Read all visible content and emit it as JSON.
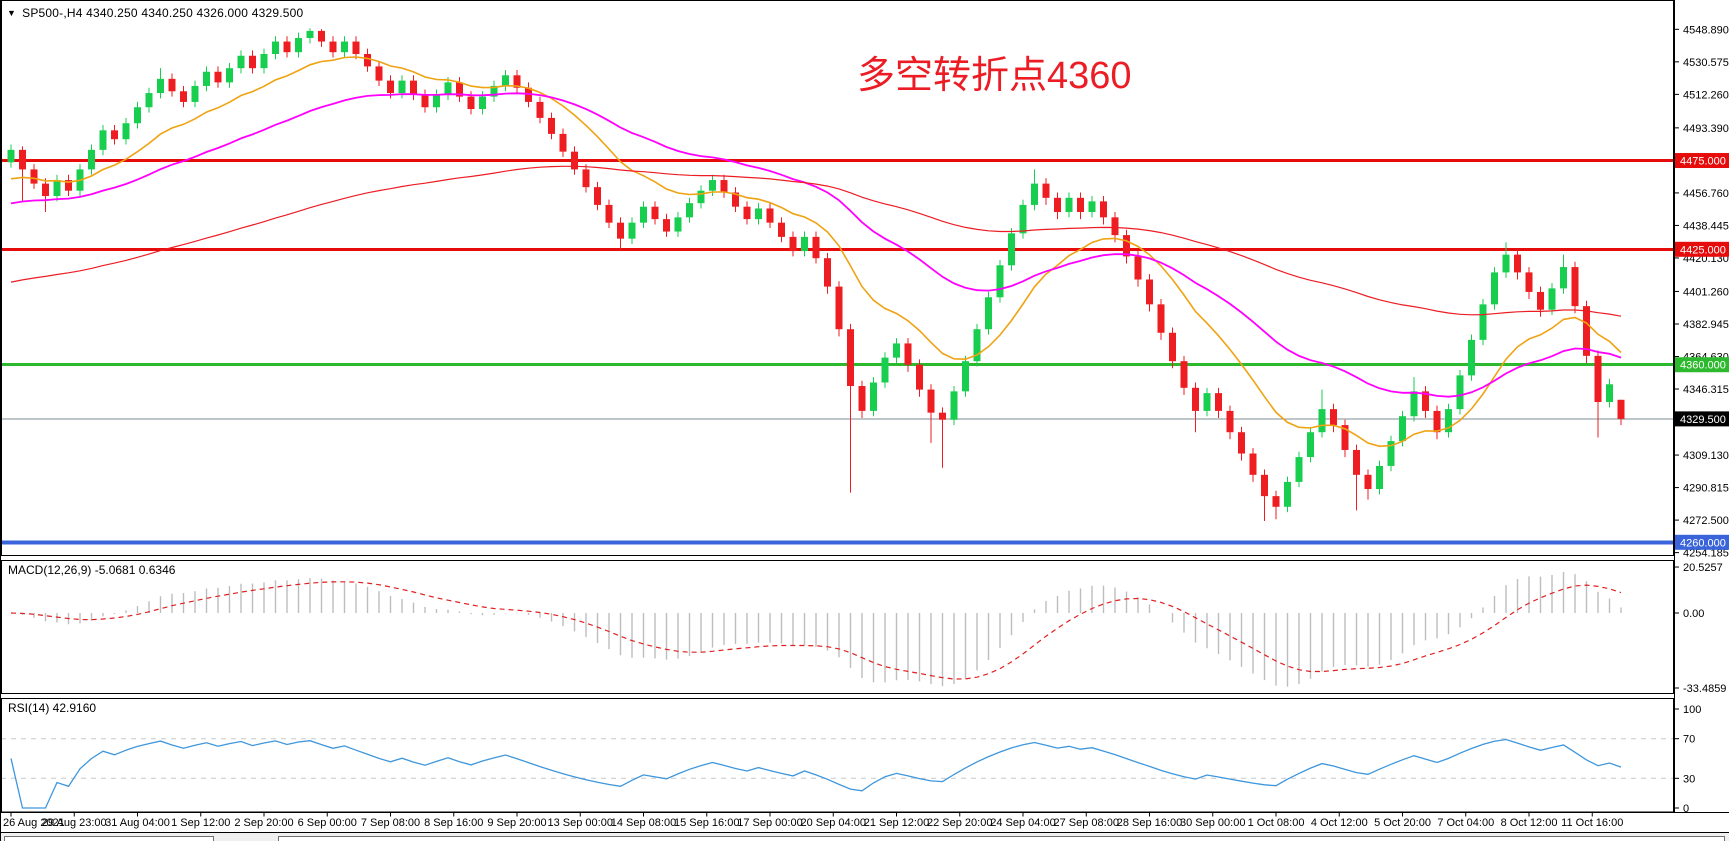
{
  "symbol_bar": {
    "collapse_icon": "▼",
    "text": "SP500-,H4  4340.250 4340.250 4326.000 4329.500"
  },
  "annotation": {
    "text": "多空转折点4360",
    "color": "#ec1c24"
  },
  "colors": {
    "bull": "#17CE4F",
    "bear": "#EE1D22",
    "ma_fast": "#EFA312",
    "ma_mid": "#FF00FF",
    "ma_slow": "#ED1C24",
    "hline_red": "#E60C0C",
    "hline_green": "#2DB92D",
    "hline_blue": "#3A64D9",
    "hline_gray": "#7C8C94",
    "macd_hist": "#BDBDBD",
    "macd_signal": "#E02020",
    "rsi_line": "#3E96DC",
    "rsi_level": "#C8C8C8",
    "scale_text": "#000000",
    "badge_text": "#FFFFFF"
  },
  "chart_data": [
    {
      "type": "candlestick",
      "symbol": "SP500-",
      "timeframe": "H4",
      "last_ohlc": {
        "open": "4340.250",
        "high": "4340.250",
        "low": "4326.000",
        "close": "4329.500"
      },
      "y_ticks": [
        "4548.890",
        "4530.575",
        "4512.260",
        "4493.390",
        "4456.760",
        "4438.445",
        "4420.130",
        "4401.260",
        "4382.945",
        "4364.630",
        "4346.315",
        "4309.130",
        "4290.815",
        "4272.500",
        "4254.185"
      ],
      "badges": [
        {
          "text": "4475.000",
          "price": 4475.0,
          "bg": "#E60C0C"
        },
        {
          "text": "4425.000",
          "price": 4425.0,
          "bg": "#E60C0C"
        },
        {
          "text": "4360.000",
          "price": 4360.0,
          "bg": "#2DB92D"
        },
        {
          "text": "4329.500",
          "price": 4329.5,
          "bg": "#000000"
        },
        {
          "text": "4260.000",
          "price": 4260.0,
          "bg": "#3A64D9"
        }
      ],
      "hlines": [
        {
          "price": 4475.0,
          "color_key": "hline_red",
          "width": 3
        },
        {
          "price": 4425.0,
          "color_key": "hline_red",
          "width": 3
        },
        {
          "price": 4360.0,
          "color_key": "hline_green",
          "width": 3
        },
        {
          "price": 4329.5,
          "color_key": "hline_gray",
          "width": 1
        },
        {
          "price": 4260.0,
          "color_key": "hline_blue",
          "width": 4
        }
      ],
      "overlays": [
        {
          "name": "ema-fast-orange",
          "period": 13,
          "seed": 4462,
          "color_key": "ma_fast",
          "stroke": 1.6
        },
        {
          "name": "ema-mid-magenta",
          "period": 34,
          "seed": 4449,
          "color_key": "ma_mid",
          "stroke": 1.8
        },
        {
          "name": "ema-slow-red",
          "period": 100,
          "seed": 4405,
          "color_key": "ma_slow",
          "stroke": 1.2
        }
      ],
      "x_labels": [
        "26 Aug 2021",
        "29 Aug 23:00",
        "31 Aug 04:00",
        "1 Sep 12:00",
        "2 Sep 20:00",
        "6 Sep 00:00",
        "7 Sep 08:00",
        "8 Sep 16:00",
        "9 Sep 20:00",
        "13 Sep 00:00",
        "14 Sep 08:00",
        "15 Sep 16:00",
        "17 Sep 00:00",
        "20 Sep 04:00",
        "21 Sep 12:00",
        "22 Sep 20:00",
        "24 Sep 04:00",
        "27 Sep 08:00",
        "28 Sep 16:00",
        "30 Sep 00:00",
        "1 Oct 08:00",
        "4 Oct 12:00",
        "5 Oct 20:00",
        "7 Oct 04:00",
        "8 Oct 12:00",
        "11 Oct 16:00"
      ],
      "ohlc": [
        [
          4474,
          4484,
          4471,
          4481
        ],
        [
          4481,
          4483,
          4452,
          4470
        ],
        [
          4470,
          4473,
          4459,
          4462
        ],
        [
          4462,
          4465,
          4446,
          4455
        ],
        [
          4455,
          4467,
          4452,
          4464
        ],
        [
          4464,
          4467,
          4455,
          4458
        ],
        [
          4458,
          4473,
          4455,
          4470
        ],
        [
          4470,
          4484,
          4467,
          4481
        ],
        [
          4481,
          4495,
          4478,
          4492
        ],
        [
          4492,
          4495,
          4484,
          4487
        ],
        [
          4487,
          4499,
          4484,
          4496
        ],
        [
          4496,
          4508,
          4493,
          4505
        ],
        [
          4505,
          4516,
          4502,
          4513
        ],
        [
          4513,
          4527,
          4510,
          4521
        ],
        [
          4521,
          4524,
          4511,
          4514
        ],
        [
          4514,
          4517,
          4505,
          4508
        ],
        [
          4508,
          4520,
          4505,
          4517
        ],
        [
          4517,
          4528,
          4514,
          4525
        ],
        [
          4525,
          4528,
          4516,
          4519
        ],
        [
          4519,
          4530,
          4516,
          4527
        ],
        [
          4527,
          4537,
          4524,
          4534
        ],
        [
          4534,
          4537,
          4524,
          4527
        ],
        [
          4527,
          4538,
          4524,
          4535
        ],
        [
          4535,
          4545,
          4532,
          4542
        ],
        [
          4542,
          4545,
          4533,
          4536
        ],
        [
          4536,
          4547,
          4533,
          4544
        ],
        [
          4544,
          4549.5,
          4541,
          4548
        ],
        [
          4548,
          4549,
          4539,
          4542
        ],
        [
          4542,
          4545,
          4533,
          4536
        ],
        [
          4536,
          4545,
          4533,
          4542
        ],
        [
          4542,
          4545,
          4532,
          4535
        ],
        [
          4535,
          4538,
          4525,
          4528
        ],
        [
          4528,
          4531,
          4517,
          4520
        ],
        [
          4520,
          4523,
          4510,
          4513
        ],
        [
          4513,
          4523,
          4510,
          4520
        ],
        [
          4520,
          4523,
          4509,
          4512
        ],
        [
          4512,
          4515,
          4502,
          4505
        ],
        [
          4505,
          4515,
          4502,
          4512
        ],
        [
          4512,
          4522,
          4509,
          4519
        ],
        [
          4519,
          4522,
          4508,
          4511
        ],
        [
          4511,
          4514,
          4501,
          4504
        ],
        [
          4504,
          4514,
          4501,
          4511
        ],
        [
          4511,
          4520,
          4508,
          4517
        ],
        [
          4517,
          4526,
          4514,
          4523
        ],
        [
          4523,
          4526,
          4513,
          4516
        ],
        [
          4516,
          4519,
          4505,
          4508
        ],
        [
          4508,
          4511,
          4496,
          4499
        ],
        [
          4499,
          4502,
          4487,
          4490
        ],
        [
          4490,
          4493,
          4477,
          4480
        ],
        [
          4480,
          4483,
          4467,
          4470
        ],
        [
          4470,
          4473,
          4457,
          4460
        ],
        [
          4460,
          4463,
          4447,
          4450
        ],
        [
          4450,
          4453,
          4437,
          4440
        ],
        [
          4440,
          4443,
          4424,
          4431
        ],
        [
          4431,
          4443,
          4428,
          4440
        ],
        [
          4440,
          4452,
          4437,
          4449
        ],
        [
          4449,
          4452,
          4439,
          4442
        ],
        [
          4442,
          4445,
          4432,
          4435
        ],
        [
          4435,
          4446,
          4432,
          4443
        ],
        [
          4443,
          4454,
          4440,
          4451
        ],
        [
          4451,
          4461,
          4448,
          4458
        ],
        [
          4458,
          4467,
          4455,
          4464
        ],
        [
          4464,
          4467,
          4454,
          4457
        ],
        [
          4457,
          4460,
          4446,
          4449
        ],
        [
          4449,
          4452,
          4439,
          4442
        ],
        [
          4442,
          4451,
          4439,
          4448
        ],
        [
          4448,
          4451,
          4437,
          4440
        ],
        [
          4440,
          4443,
          4429,
          4432
        ],
        [
          4432,
          4435,
          4421,
          4424
        ],
        [
          4424,
          4435,
          4421,
          4432
        ],
        [
          4432,
          4435,
          4417,
          4420
        ],
        [
          4420,
          4423,
          4400,
          4404
        ],
        [
          4404,
          4407,
          4376,
          4380
        ],
        [
          4380,
          4383,
          4288,
          4348
        ],
        [
          4348,
          4351,
          4330,
          4334
        ],
        [
          4334,
          4353,
          4331,
          4350
        ],
        [
          4350,
          4367,
          4347,
          4364
        ],
        [
          4364,
          4375,
          4361,
          4372
        ],
        [
          4372,
          4375,
          4356,
          4360
        ],
        [
          4360,
          4363,
          4342,
          4346
        ],
        [
          4346,
          4349,
          4316,
          4333
        ],
        [
          4333,
          4336,
          4302,
          4329
        ],
        [
          4329,
          4348,
          4326,
          4345
        ],
        [
          4345,
          4365,
          4342,
          4362
        ],
        [
          4362,
          4383,
          4359,
          4380
        ],
        [
          4380,
          4401,
          4377,
          4398
        ],
        [
          4398,
          4419,
          4395,
          4416
        ],
        [
          4416,
          4437,
          4413,
          4434
        ],
        [
          4434,
          4453,
          4431,
          4450
        ],
        [
          4450,
          4470,
          4447,
          4462
        ],
        [
          4462,
          4465,
          4450,
          4454
        ],
        [
          4454,
          4457,
          4442,
          4446
        ],
        [
          4446,
          4457,
          4443,
          4454
        ],
        [
          4454,
          4457,
          4442,
          4446
        ],
        [
          4446,
          4455,
          4443,
          4452
        ],
        [
          4452,
          4455,
          4439,
          4443
        ],
        [
          4443,
          4446,
          4429,
          4433
        ],
        [
          4433,
          4436,
          4417,
          4421
        ],
        [
          4421,
          4424,
          4404,
          4408
        ],
        [
          4408,
          4411,
          4390,
          4394
        ],
        [
          4394,
          4397,
          4374,
          4378
        ],
        [
          4378,
          4381,
          4358,
          4362
        ],
        [
          4362,
          4365,
          4343,
          4347
        ],
        [
          4347,
          4350,
          4322,
          4334
        ],
        [
          4334,
          4347,
          4331,
          4344
        ],
        [
          4344,
          4347,
          4330,
          4334
        ],
        [
          4334,
          4337,
          4318,
          4322
        ],
        [
          4322,
          4325,
          4306,
          4310
        ],
        [
          4310,
          4313,
          4294,
          4298
        ],
        [
          4298,
          4301,
          4272,
          4286
        ],
        [
          4286,
          4289,
          4273,
          4280
        ],
        [
          4280,
          4297,
          4277,
          4294
        ],
        [
          4294,
          4311,
          4291,
          4308
        ],
        [
          4308,
          4325,
          4305,
          4322
        ],
        [
          4322,
          4346,
          4319,
          4335
        ],
        [
          4335,
          4338,
          4322,
          4326
        ],
        [
          4326,
          4329,
          4308,
          4312
        ],
        [
          4312,
          4315,
          4278,
          4298
        ],
        [
          4298,
          4301,
          4284,
          4290
        ],
        [
          4290,
          4306,
          4287,
          4303
        ],
        [
          4303,
          4320,
          4300,
          4317
        ],
        [
          4317,
          4334,
          4314,
          4331
        ],
        [
          4331,
          4353,
          4328,
          4345
        ],
        [
          4345,
          4348,
          4330,
          4334
        ],
        [
          4334,
          4337,
          4318,
          4322
        ],
        [
          4322,
          4338,
          4319,
          4335
        ],
        [
          4335,
          4357,
          4332,
          4354
        ],
        [
          4354,
          4377,
          4351,
          4374
        ],
        [
          4374,
          4397,
          4371,
          4394
        ],
        [
          4394,
          4415,
          4391,
          4412
        ],
        [
          4412,
          4429,
          4409,
          4422
        ],
        [
          4422,
          4425,
          4408,
          4412
        ],
        [
          4412,
          4415,
          4397,
          4401
        ],
        [
          4401,
          4404,
          4387,
          4391
        ],
        [
          4391,
          4406,
          4388,
          4403
        ],
        [
          4403,
          4422,
          4400,
          4415
        ],
        [
          4415,
          4418,
          4389,
          4393
        ],
        [
          4393,
          4396,
          4361,
          4365
        ],
        [
          4365,
          4368,
          4319,
          4339
        ],
        [
          4339,
          4352,
          4336,
          4349
        ],
        [
          4340.25,
          4340.25,
          4326,
          4329.5
        ]
      ]
    },
    {
      "type": "macd",
      "label": "MACD(12,26,9) -5.0681 0.6346",
      "params": {
        "fast": 12,
        "slow": 26,
        "signal": 9
      },
      "values_text": {
        "main": "-5.0681",
        "signal": "0.6346"
      },
      "y_ticks": [
        {
          "v": 20.5257,
          "t": "20.5257"
        },
        {
          "v": 0,
          "t": "0.00"
        },
        {
          "v": -33.4859,
          "t": "-33.4859"
        }
      ]
    },
    {
      "type": "rsi",
      "label": "RSI(14) 42.9160",
      "period": 14,
      "value_text": "42.9160",
      "levels": [
        70,
        30
      ],
      "y_ticks": [
        {
          "v": 100,
          "t": "100"
        },
        {
          "v": 70,
          "t": "70"
        },
        {
          "v": 30,
          "t": "30"
        },
        {
          "v": 0,
          "t": "0"
        }
      ]
    }
  ]
}
